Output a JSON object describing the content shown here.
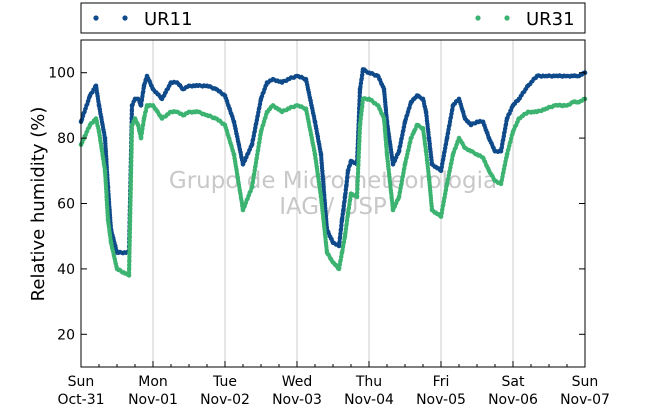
{
  "chart_data": {
    "type": "scatter",
    "title": "",
    "ylabel": "Relative humidity (%)",
    "ylim": [
      10,
      110
    ],
    "yticks": [
      20,
      40,
      60,
      80,
      100
    ],
    "xlim": [
      "2010-10-31 00:00",
      "2010-11-07 00:00"
    ],
    "xticks": [
      {
        "date": "2010-10-31",
        "day": "Sun",
        "label": "Oct-31"
      },
      {
        "date": "2010-11-01",
        "day": "Mon",
        "label": "Nov-01"
      },
      {
        "date": "2010-11-02",
        "day": "Tue",
        "label": "Nov-02"
      },
      {
        "date": "2010-11-03",
        "day": "Wed",
        "label": "Nov-03"
      },
      {
        "date": "2010-11-04",
        "day": "Thu",
        "label": "Nov-04"
      },
      {
        "date": "2010-11-05",
        "day": "Fri",
        "label": "Nov-05"
      },
      {
        "date": "2010-11-06",
        "day": "Sat",
        "label": "Nov-06"
      },
      {
        "date": "2010-11-07",
        "day": "Sun",
        "label": "Nov-07"
      }
    ],
    "grid": "vertical",
    "legend": "top",
    "series": [
      {
        "name": "UR11",
        "color": "#0f4a8a",
        "x": [
          "2010-10-31 00:00",
          "2010-10-31 03:00",
          "2010-10-31 05:00",
          "2010-10-31 06:00",
          "2010-10-31 08:00",
          "2010-10-31 09:00",
          "2010-10-31 10:00",
          "2010-10-31 12:00",
          "2010-10-31 16:00",
          "2010-10-31 17:00",
          "2010-10-31 18:00",
          "2010-10-31 19:00",
          "2010-10-31 20:00",
          "2010-10-31 21:00",
          "2010-10-31 22:00",
          "2010-11-01 00:00",
          "2010-11-01 03:00",
          "2010-11-01 06:00",
          "2010-11-01 08:00",
          "2010-11-01 10:00",
          "2010-11-01 12:00",
          "2010-11-01 15:00",
          "2010-11-01 18:00",
          "2010-11-01 21:00",
          "2010-11-02 00:00",
          "2010-11-02 03:00",
          "2010-11-02 06:00",
          "2010-11-02 09:00",
          "2010-11-02 12:00",
          "2010-11-02 14:00",
          "2010-11-02 16:00",
          "2010-11-02 19:00",
          "2010-11-02 21:00",
          "2010-11-03 00:00",
          "2010-11-03 03:00",
          "2010-11-03 06:00",
          "2010-11-03 08:00",
          "2010-11-03 10:00",
          "2010-11-03 12:00",
          "2010-11-03 14:00",
          "2010-11-03 15:00",
          "2010-11-03 16:00",
          "2010-11-03 17:00",
          "2010-11-03 18:00",
          "2010-11-03 20:00",
          "2010-11-03 21:00",
          "2010-11-03 22:00",
          "2010-11-04 00:00",
          "2010-11-04 03:00",
          "2010-11-04 05:00",
          "2010-11-04 06:00",
          "2010-11-04 08:00",
          "2010-11-04 10:00",
          "2010-11-04 12:00",
          "2010-11-04 14:00",
          "2010-11-04 15:00",
          "2010-11-04 16:00",
          "2010-11-04 18:00",
          "2010-11-04 19:00",
          "2010-11-04 20:00",
          "2010-11-04 21:00",
          "2010-11-05 00:00",
          "2010-11-05 02:00",
          "2010-11-05 04:00",
          "2010-11-05 06:00",
          "2010-11-05 08:00",
          "2010-11-05 10:00",
          "2010-11-05 12:00",
          "2010-11-05 14:00",
          "2010-11-05 16:00",
          "2010-11-05 18:00",
          "2010-11-05 20:00",
          "2010-11-05 22:00",
          "2010-11-06 00:00",
          "2010-11-06 02:00",
          "2010-11-06 05:00",
          "2010-11-06 08:00",
          "2010-11-06 11:00",
          "2010-11-06 14:00",
          "2010-11-06 16:00",
          "2010-11-06 18:00",
          "2010-11-06 20:00",
          "2010-11-06 21:00",
          "2010-11-06 22:00",
          "2010-11-07 00:00"
        ],
        "y": [
          85,
          93,
          96,
          90,
          80,
          65,
          52,
          45,
          45,
          90,
          92,
          92,
          90,
          96,
          99,
          95,
          92,
          97,
          97,
          95,
          96,
          96,
          96,
          95,
          93,
          85,
          72,
          78,
          92,
          97,
          98,
          97,
          98,
          99,
          98,
          85,
          75,
          52,
          48,
          47,
          55,
          62,
          70,
          73,
          72,
          95,
          101,
          100,
          99,
          95,
          85,
          72,
          76,
          85,
          91,
          92,
          93,
          92,
          88,
          80,
          72,
          70,
          80,
          90,
          92,
          86,
          84,
          85,
          85,
          80,
          76,
          76,
          86,
          90,
          92,
          96,
          99,
          99,
          99,
          99,
          99,
          99,
          99,
          99,
          100
        ]
      },
      {
        "name": "UR31",
        "color": "#3cb371",
        "x": [
          "2010-10-31 00:00",
          "2010-10-31 03:00",
          "2010-10-31 05:00",
          "2010-10-31 06:00",
          "2010-10-31 08:00",
          "2010-10-31 09:00",
          "2010-10-31 10:00",
          "2010-10-31 12:00",
          "2010-10-31 16:00",
          "2010-10-31 17:00",
          "2010-10-31 18:00",
          "2010-10-31 19:00",
          "2010-10-31 20:00",
          "2010-10-31 21:00",
          "2010-10-31 22:00",
          "2010-11-01 00:00",
          "2010-11-01 03:00",
          "2010-11-01 06:00",
          "2010-11-01 08:00",
          "2010-11-01 10:00",
          "2010-11-01 12:00",
          "2010-11-01 15:00",
          "2010-11-01 18:00",
          "2010-11-01 21:00",
          "2010-11-02 00:00",
          "2010-11-02 03:00",
          "2010-11-02 06:00",
          "2010-11-02 09:00",
          "2010-11-02 12:00",
          "2010-11-02 14:00",
          "2010-11-02 16:00",
          "2010-11-02 19:00",
          "2010-11-02 21:00",
          "2010-11-03 00:00",
          "2010-11-03 03:00",
          "2010-11-03 06:00",
          "2010-11-03 08:00",
          "2010-11-03 10:00",
          "2010-11-03 12:00",
          "2010-11-03 14:00",
          "2010-11-03 15:00",
          "2010-11-03 16:00",
          "2010-11-03 17:00",
          "2010-11-03 18:00",
          "2010-11-03 20:00",
          "2010-11-03 21:00",
          "2010-11-03 22:00",
          "2010-11-04 00:00",
          "2010-11-04 03:00",
          "2010-11-04 05:00",
          "2010-11-04 06:00",
          "2010-11-04 08:00",
          "2010-11-04 10:00",
          "2010-11-04 12:00",
          "2010-11-04 14:00",
          "2010-11-04 15:00",
          "2010-11-04 16:00",
          "2010-11-04 18:00",
          "2010-11-04 19:00",
          "2010-11-04 20:00",
          "2010-11-04 21:00",
          "2010-11-05 00:00",
          "2010-11-05 02:00",
          "2010-11-05 04:00",
          "2010-11-05 06:00",
          "2010-11-05 08:00",
          "2010-11-05 10:00",
          "2010-11-05 12:00",
          "2010-11-05 14:00",
          "2010-11-05 16:00",
          "2010-11-05 18:00",
          "2010-11-05 20:00",
          "2010-11-05 22:00",
          "2010-11-06 00:00",
          "2010-11-06 02:00",
          "2010-11-06 05:00",
          "2010-11-06 08:00",
          "2010-11-06 11:00",
          "2010-11-06 14:00",
          "2010-11-06 16:00",
          "2010-11-06 18:00",
          "2010-11-06 20:00",
          "2010-11-06 21:00",
          "2010-11-06 22:00",
          "2010-11-07 00:00"
        ],
        "y": [
          78,
          84,
          86,
          82,
          70,
          55,
          48,
          40,
          38,
          84,
          86,
          84,
          80,
          86,
          90,
          90,
          86,
          88,
          88,
          87,
          88,
          88,
          87,
          86,
          84,
          75,
          58,
          65,
          82,
          88,
          90,
          88,
          89,
          90,
          89,
          75,
          62,
          45,
          42,
          40,
          45,
          50,
          57,
          63,
          62,
          84,
          92,
          92,
          90,
          86,
          75,
          58,
          62,
          72,
          80,
          82,
          84,
          83,
          76,
          68,
          58,
          56,
          66,
          75,
          80,
          77,
          76,
          75,
          74,
          70,
          67,
          66,
          75,
          82,
          86,
          88,
          88,
          89,
          90,
          90,
          90,
          91,
          91,
          91,
          92
        ]
      }
    ],
    "watermark": [
      "Grupo de Micrometeorologia",
      "IAG / USP"
    ]
  }
}
